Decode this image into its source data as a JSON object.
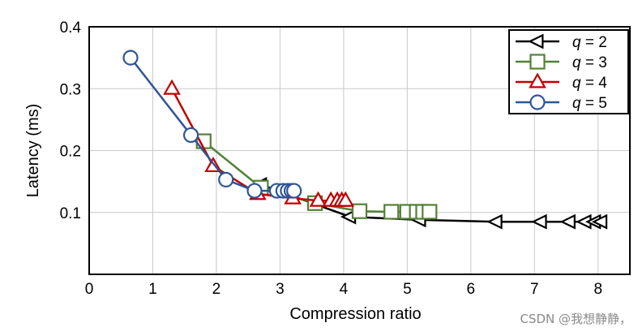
{
  "watermark": "CSDN @我想静静，",
  "chart_data": {
    "type": "line",
    "title": "",
    "xlabel": "Compression ratio",
    "ylabel": "Latency (ms)",
    "xlim": [
      0,
      8.5
    ],
    "ylim": [
      0.0,
      0.4
    ],
    "x_ticks": [
      0,
      1,
      2,
      3,
      4,
      5,
      6,
      7,
      8
    ],
    "x_tick_labels": [
      "0",
      "1",
      "2",
      "3",
      "4",
      "5",
      "6",
      "7",
      "8"
    ],
    "y_ticks": [
      0.1,
      0.2,
      0.3,
      0.4
    ],
    "y_tick_labels": [
      "0.1",
      "0.2",
      "0.3",
      "0.4"
    ],
    "grid": true,
    "legend_position": "top-right",
    "series": [
      {
        "name": "q = 2",
        "legend_var": "q",
        "legend_value": "= 2",
        "color": "#000000",
        "marker": "triangle-left",
        "x": [
          2.7,
          4.1,
          5.2,
          6.4,
          7.1,
          7.55,
          7.8,
          7.95,
          8.05
        ],
        "y": [
          0.145,
          0.093,
          0.088,
          0.085,
          0.085,
          0.085,
          0.085,
          0.085,
          0.085
        ]
      },
      {
        "name": "q = 3",
        "legend_var": "q",
        "legend_value": "= 3",
        "color": "#538135",
        "marker": "square",
        "x": [
          1.8,
          2.7,
          3.55,
          4.25,
          4.75,
          5.0,
          5.15,
          5.25,
          5.35
        ],
        "y": [
          0.215,
          0.14,
          0.115,
          0.102,
          0.101,
          0.101,
          0.101,
          0.101,
          0.101
        ]
      },
      {
        "name": "q = 4",
        "legend_var": "q",
        "legend_value": "= 4",
        "color": "#c00000",
        "marker": "triangle-up",
        "x": [
          1.3,
          1.95,
          2.65,
          3.2,
          3.6,
          3.8,
          3.9,
          3.97,
          4.03
        ],
        "y": [
          0.3,
          0.175,
          0.13,
          0.123,
          0.119,
          0.119,
          0.119,
          0.119,
          0.119
        ]
      },
      {
        "name": "q = 5",
        "legend_var": "q",
        "legend_value": "= 5",
        "color": "#2f5597",
        "marker": "circle",
        "x": [
          0.65,
          1.6,
          2.15,
          2.6,
          2.95,
          3.05,
          3.12,
          3.18,
          3.22
        ],
        "y": [
          0.35,
          0.225,
          0.153,
          0.135,
          0.135,
          0.135,
          0.135,
          0.135,
          0.135
        ]
      }
    ]
  }
}
